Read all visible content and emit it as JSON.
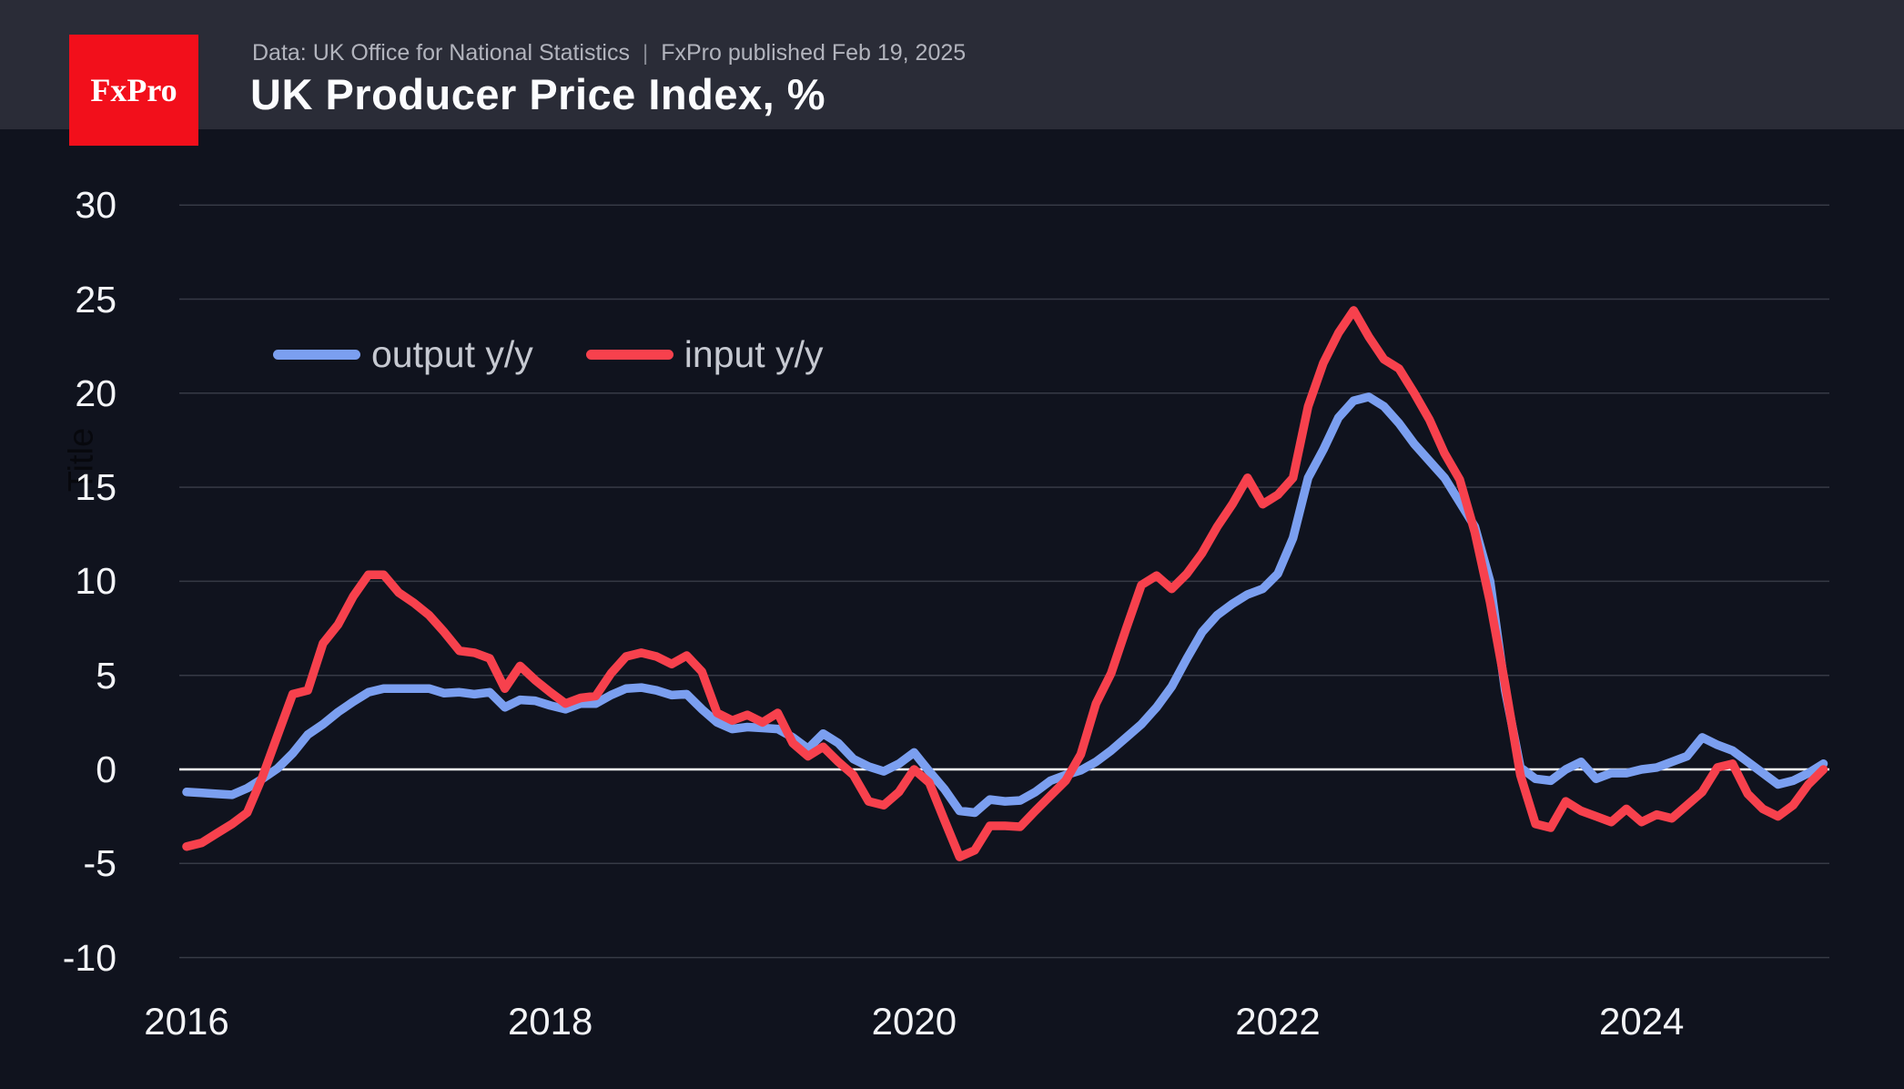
{
  "header": {
    "logo_text": "FxPro",
    "subtitle_source": "Data: UK Office for National Statistics",
    "subtitle_divider": "|",
    "subtitle_published": "FxPro published Feb 19, 2025",
    "title": "UK Producer Price Index, %"
  },
  "legend": [
    {
      "label": "output y/y",
      "color": "#7b9ff0"
    },
    {
      "label": "input y/y",
      "color": "#f7414d"
    }
  ],
  "axis": {
    "y_title": "Title",
    "y_ticks": [
      30,
      25,
      20,
      15,
      10,
      5,
      0,
      -5,
      -10
    ],
    "x_ticks": [
      "2016",
      "2018",
      "2020",
      "2022",
      "2024"
    ]
  },
  "colors": {
    "page_background": "#10131e",
    "header_background": "#2a2c37",
    "logo_red": "#f20f1b",
    "gridline": "#363a45",
    "zero_line": "#ffffff",
    "output_line": "#7b9ff0",
    "input_line": "#f7414d"
  },
  "chart_data": {
    "type": "line",
    "title": "UK Producer Price Index, %",
    "unit": "percent",
    "frequency": "monthly",
    "x_start": "2016-01",
    "x_end": "2025-01",
    "xlabel": "",
    "ylabel": "Title",
    "ylim": [
      -10,
      30
    ],
    "grid": "horizontal",
    "legend_position": "top-left-inside",
    "series": [
      {
        "name": "output y/y",
        "color": "#7b9ff0",
        "values": [
          -1.2,
          -1.25,
          -1.3,
          -1.35,
          -1.0,
          -0.5,
          0.05,
          0.85,
          1.85,
          2.4,
          3.05,
          3.6,
          4.1,
          4.3,
          4.3,
          4.3,
          4.3,
          4.05,
          4.1,
          4.0,
          4.1,
          3.3,
          3.7,
          3.65,
          3.4,
          3.2,
          3.5,
          3.5,
          3.95,
          4.3,
          4.35,
          4.2,
          3.95,
          4.0,
          3.2,
          2.5,
          2.15,
          2.25,
          2.2,
          2.15,
          1.7,
          1.1,
          1.9,
          1.4,
          0.55,
          0.15,
          -0.1,
          0.3,
          0.9,
          -0.1,
          -1.05,
          -2.2,
          -2.3,
          -1.6,
          -1.7,
          -1.65,
          -1.2,
          -0.6,
          -0.3,
          -0.05,
          0.4,
          1.0,
          1.7,
          2.4,
          3.3,
          4.4,
          5.9,
          7.3,
          8.2,
          8.8,
          9.3,
          9.6,
          10.4,
          12.3,
          15.5,
          17.0,
          18.7,
          19.6,
          19.8,
          19.3,
          18.4,
          17.3,
          16.4,
          15.5,
          14.2,
          12.9,
          10.0,
          4.2,
          0.1,
          -0.5,
          -0.6,
          0.0,
          0.4,
          -0.5,
          -0.2,
          -0.2,
          0.0,
          0.1,
          0.4,
          0.7,
          1.7,
          1.3,
          1.0,
          0.4,
          -0.2,
          -0.8,
          -0.6,
          -0.2,
          0.3
        ]
      },
      {
        "name": "input y/y",
        "color": "#f7414d",
        "values": [
          -4.1,
          -3.9,
          -3.4,
          -2.9,
          -2.3,
          -0.4,
          1.8,
          4.0,
          4.2,
          6.7,
          7.7,
          9.2,
          10.35,
          10.35,
          9.4,
          8.85,
          8.2,
          7.3,
          6.3,
          6.2,
          5.9,
          4.3,
          5.5,
          4.75,
          4.1,
          3.5,
          3.8,
          3.9,
          5.1,
          6.0,
          6.2,
          6.0,
          5.6,
          6.05,
          5.2,
          3.0,
          2.6,
          2.9,
          2.5,
          3.0,
          1.4,
          0.7,
          1.2,
          0.4,
          -0.3,
          -1.7,
          -1.9,
          -1.2,
          0.0,
          -0.7,
          -2.7,
          -4.65,
          -4.3,
          -3.0,
          -3.0,
          -3.05,
          -2.2,
          -1.4,
          -0.6,
          0.8,
          3.5,
          5.1,
          7.5,
          9.8,
          10.3,
          9.6,
          10.4,
          11.5,
          12.9,
          14.1,
          15.5,
          14.1,
          14.6,
          15.5,
          19.3,
          21.6,
          23.2,
          24.4,
          23.0,
          21.8,
          21.3,
          20.0,
          18.6,
          16.8,
          15.4,
          12.6,
          8.9,
          4.5,
          -0.3,
          -2.9,
          -3.1,
          -1.7,
          -2.2,
          -2.5,
          -2.8,
          -2.1,
          -2.8,
          -2.4,
          -2.6,
          -1.9,
          -1.2,
          0.1,
          0.3,
          -1.3,
          -2.1,
          -2.5,
          -1.9,
          -0.8,
          0.0
        ]
      }
    ]
  }
}
